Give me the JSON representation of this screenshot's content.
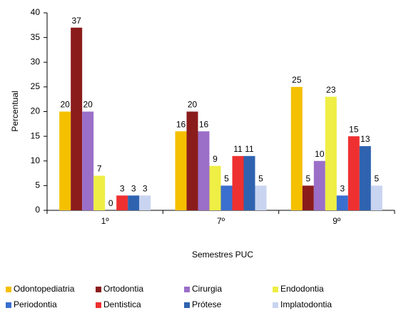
{
  "chart_data": {
    "type": "bar",
    "categories": [
      "1º",
      "7º",
      "9º"
    ],
    "x_label": "Semestres PUC",
    "y_label": "Percentual",
    "ylim": [
      0,
      40
    ],
    "yticks": [
      0,
      5,
      10,
      15,
      20,
      25,
      30,
      35,
      40
    ],
    "series": [
      {
        "name": "Odontopediatria",
        "color": "#f5c000",
        "values": [
          20,
          16,
          25
        ]
      },
      {
        "name": "Ortodontia",
        "color": "#8b1c1c",
        "values": [
          37,
          20,
          5
        ]
      },
      {
        "name": "Cirurgia",
        "color": "#9b6fc8",
        "values": [
          20,
          16,
          10
        ]
      },
      {
        "name": "Endodontia",
        "color": "#eeee44",
        "values": [
          7,
          9,
          23
        ]
      },
      {
        "name": "Periodontia",
        "color": "#3a6fd0",
        "values": [
          0,
          5,
          3
        ]
      },
      {
        "name": "Dentistica",
        "color": "#ee3030",
        "values": [
          3,
          11,
          15
        ]
      },
      {
        "name": "Prótese",
        "color": "#2f63b0",
        "values": [
          3,
          11,
          13
        ]
      },
      {
        "name": "Implatodontia",
        "color": "#c8d4f0",
        "values": [
          3,
          5,
          5
        ]
      }
    ]
  }
}
